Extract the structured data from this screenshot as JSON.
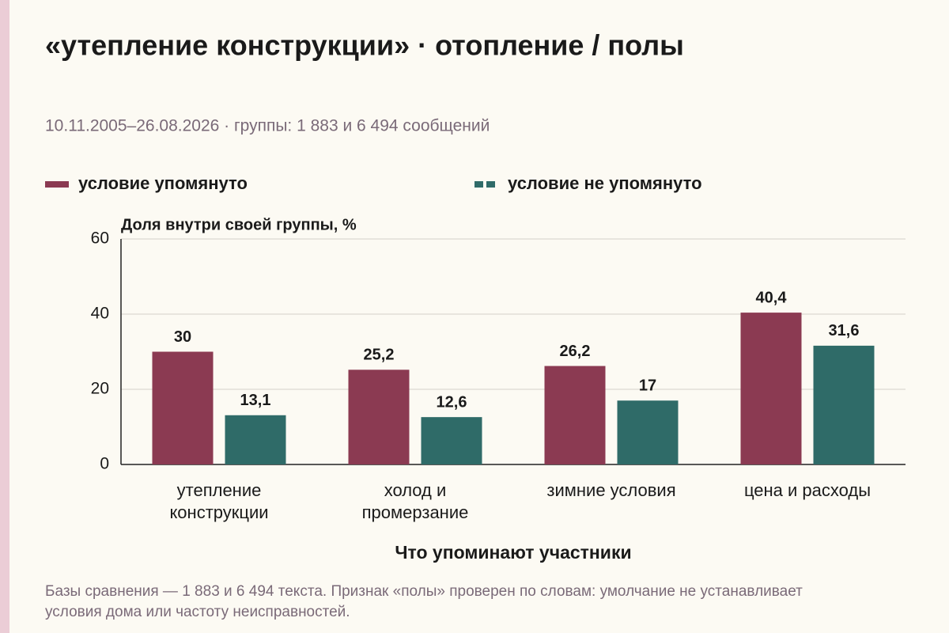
{
  "chart_data": {
    "type": "bar",
    "title": "«утепление конструкции» · отопление / полы",
    "subtitle": "10.11.2005–26.08.2026 · группы: 1 883 и 6 494 сообщений",
    "y_label": "Доля внутри своей группы, %",
    "x_label": "Что упоминают участники",
    "note": "Базы сравнения — 1 883 и 6 494 текста. Признак «полы» проверен по словам: умолчание не устанавливает условия дома или частоту неисправностей.",
    "categories": [
      "утепление\nконструкции",
      "холод и\nпромерзание",
      "зимние условия",
      "цена и расходы"
    ],
    "series": [
      {
        "name": "условие упомянуто",
        "color": "#8b3a52",
        "values": [
          30,
          25.2,
          26.2,
          40.4
        ],
        "value_labels": [
          "30",
          "25,2",
          "26,2",
          "40,4"
        ]
      },
      {
        "name": "условие не упомянуто",
        "color": "#2f6b68",
        "values": [
          13.1,
          12.6,
          17,
          31.6
        ],
        "value_labels": [
          "13,1",
          "12,6",
          "17",
          "31,6"
        ]
      }
    ],
    "ylim": [
      0,
      60
    ],
    "yticks": [
      0,
      20,
      40,
      60
    ],
    "grid": true
  }
}
